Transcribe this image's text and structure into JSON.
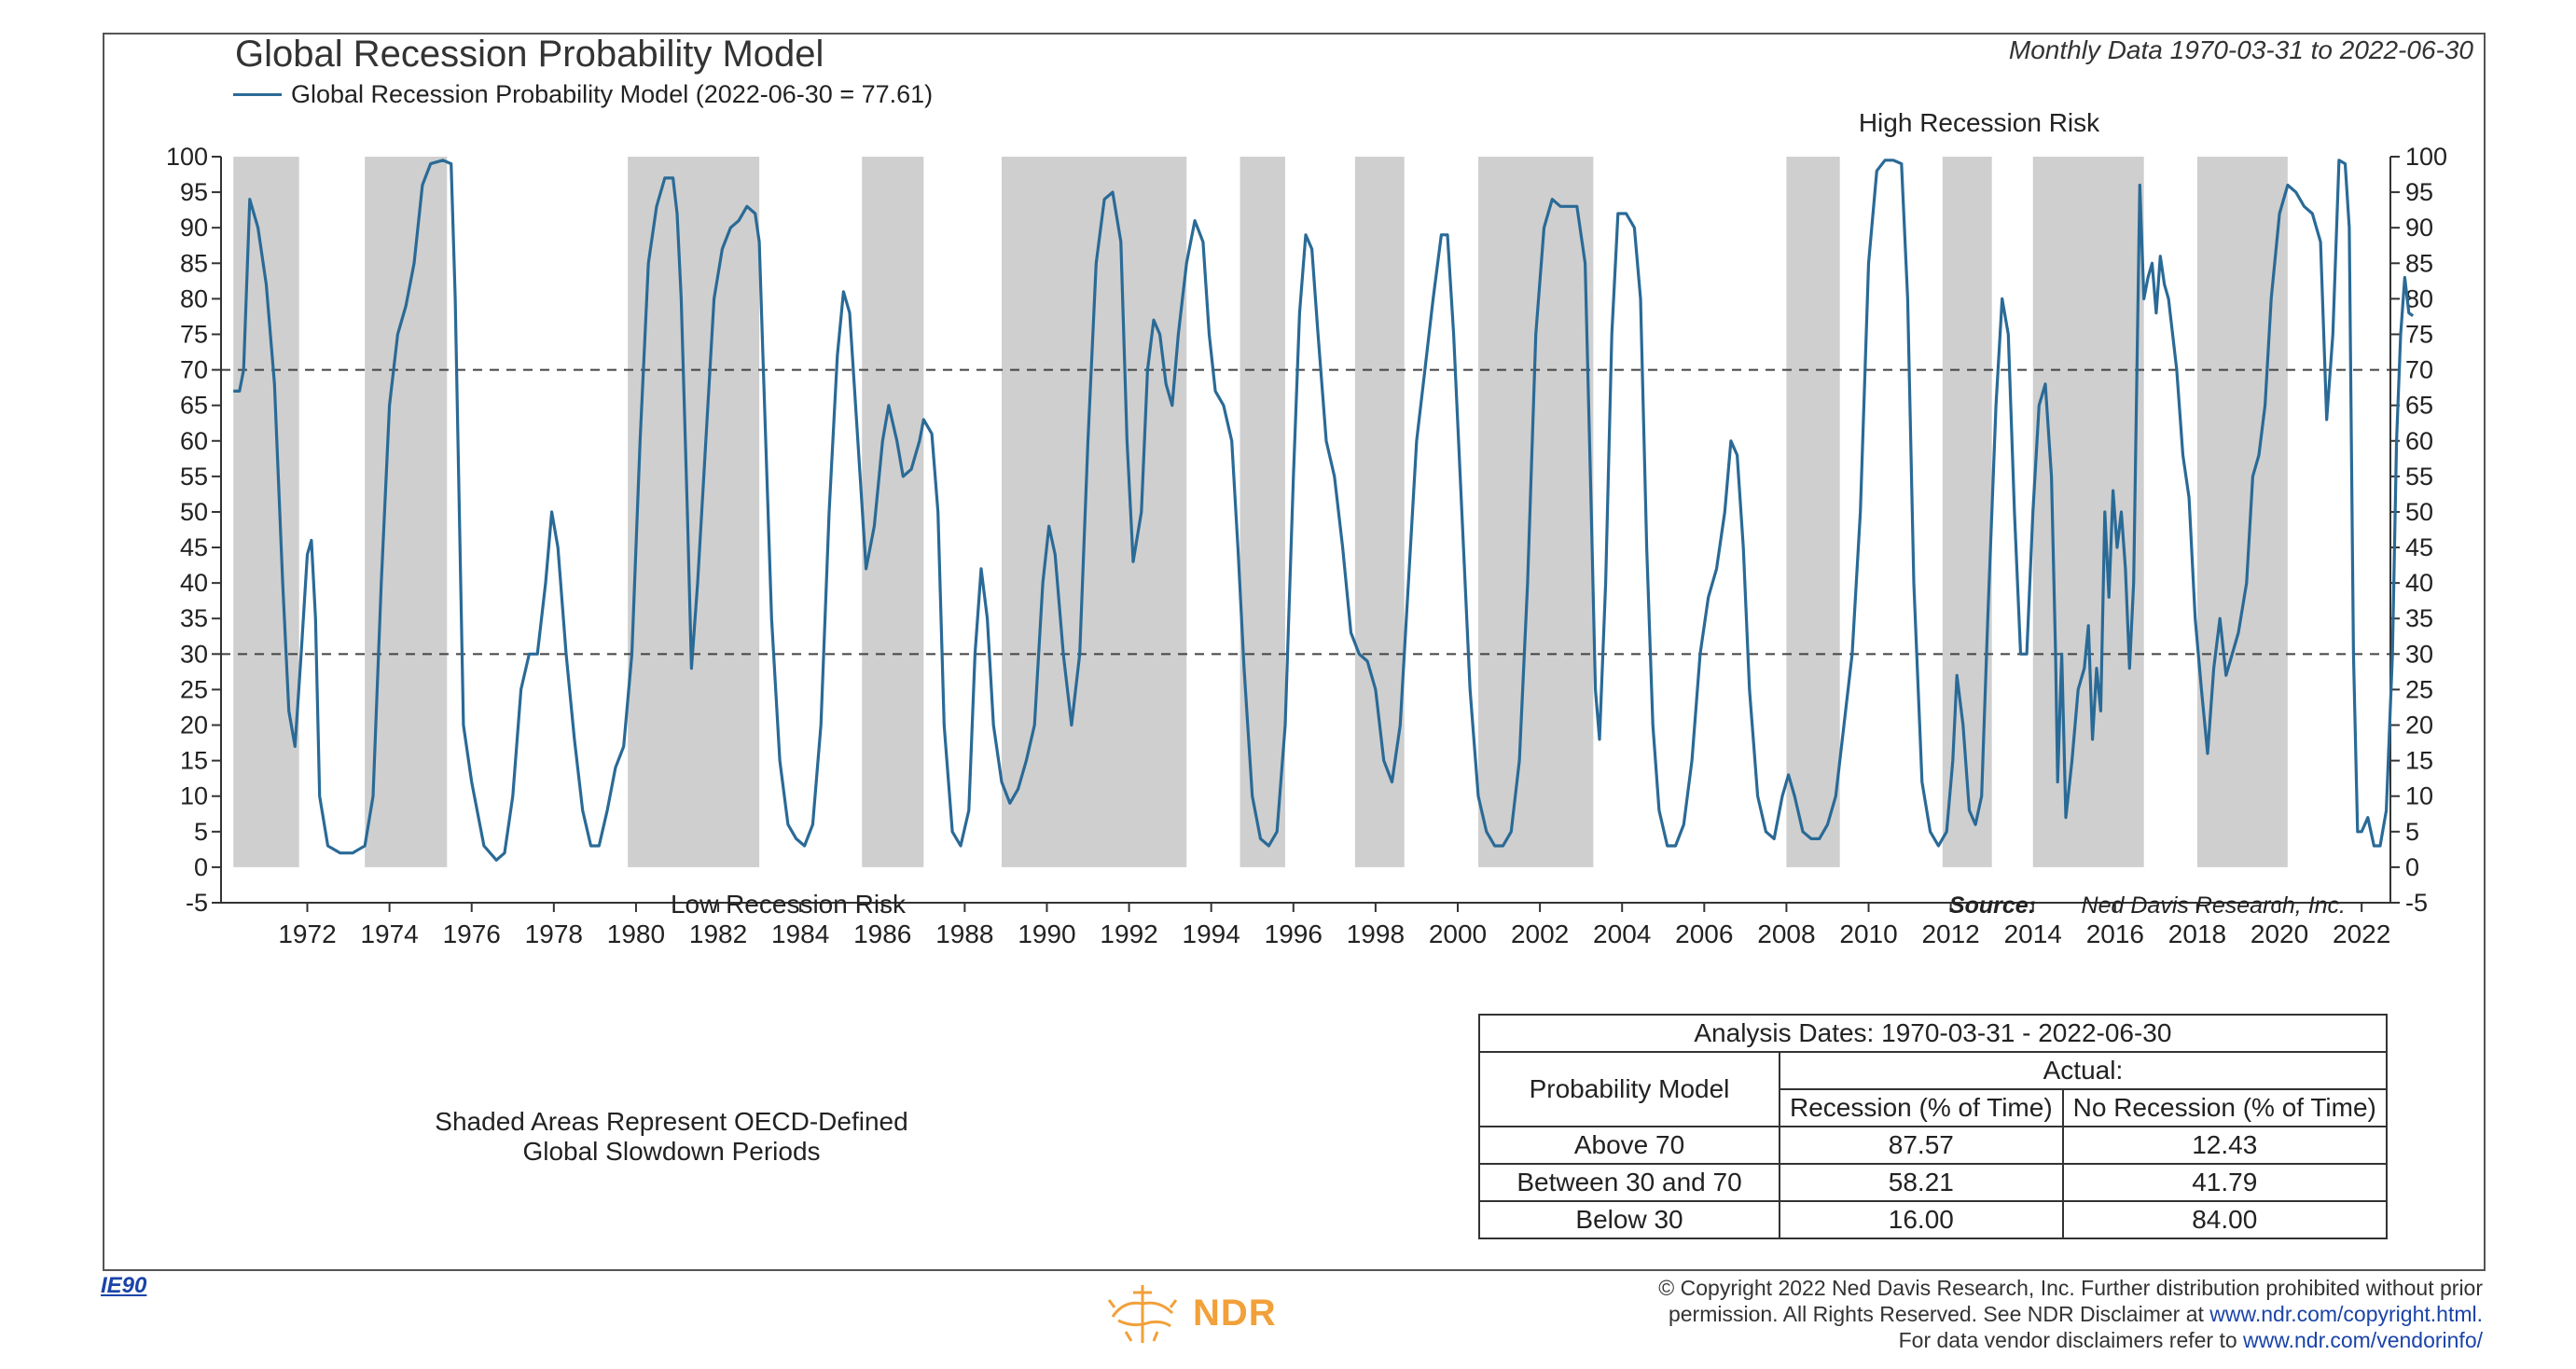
{
  "header": {
    "title": "Global Recession Probability Model",
    "subtitle": "Monthly Data 1970-03-31 to 2022-06-30",
    "legend_label": "Global Recession Probability Model (2022-06-30 = 77.61)"
  },
  "colors": {
    "series": "#2a6a96",
    "shade": "#cfcfcf",
    "reference_line": "#444444",
    "logo": "#f2a03a",
    "link": "#1a44a8"
  },
  "chart_data": {
    "type": "line",
    "title": "Global Recession Probability Model",
    "series_name": "Global Recession Probability Model",
    "last_value": 77.61,
    "xlim": [
      1969.9,
      2022.7
    ],
    "ylim": [
      -5,
      100
    ],
    "y_ticks": [
      "100",
      "95",
      "90",
      "85",
      "80",
      "75",
      "70",
      "65",
      "60",
      "55",
      "50",
      "45",
      "40",
      "35",
      "30",
      "25",
      "20",
      "15",
      "10",
      "5",
      "0",
      "-5"
    ],
    "x_ticks": [
      "1972",
      "1974",
      "1976",
      "1978",
      "1980",
      "1982",
      "1984",
      "1986",
      "1988",
      "1990",
      "1992",
      "1994",
      "1996",
      "1998",
      "2000",
      "2002",
      "2004",
      "2006",
      "2008",
      "2010",
      "2012",
      "2014",
      "2016",
      "2018",
      "2020",
      "2022"
    ],
    "reference_lines": [
      70,
      30
    ],
    "annotations": {
      "high": "High Recession Risk",
      "low": "Low Recession Risk",
      "source_label": "Source:",
      "source_name": "Ned Davis Research, Inc."
    },
    "shaded_periods": [
      [
        1970.2,
        1971.8
      ],
      [
        1973.4,
        1975.4
      ],
      [
        1979.8,
        1983.0
      ],
      [
        1985.5,
        1987.0
      ],
      [
        1988.9,
        1993.4
      ],
      [
        1994.7,
        1995.8
      ],
      [
        1997.5,
        1998.7
      ],
      [
        2000.5,
        2003.3
      ],
      [
        2008.0,
        2009.3
      ],
      [
        2011.8,
        2013.0
      ],
      [
        2014.0,
        2016.7
      ],
      [
        2018.0,
        2020.2
      ]
    ],
    "points": [
      [
        1970.2,
        67
      ],
      [
        1970.35,
        67
      ],
      [
        1970.45,
        70
      ],
      [
        1970.6,
        94
      ],
      [
        1970.8,
        90
      ],
      [
        1971.0,
        82
      ],
      [
        1971.2,
        68
      ],
      [
        1971.4,
        40
      ],
      [
        1971.55,
        22
      ],
      [
        1971.7,
        17
      ],
      [
        1971.85,
        30
      ],
      [
        1972.0,
        44
      ],
      [
        1972.1,
        46
      ],
      [
        1972.2,
        35
      ],
      [
        1972.3,
        10
      ],
      [
        1972.5,
        3
      ],
      [
        1972.8,
        2
      ],
      [
        1973.1,
        2
      ],
      [
        1973.4,
        3
      ],
      [
        1973.6,
        10
      ],
      [
        1973.8,
        40
      ],
      [
        1974.0,
        65
      ],
      [
        1974.2,
        75
      ],
      [
        1974.4,
        79
      ],
      [
        1974.6,
        85
      ],
      [
        1974.8,
        96
      ],
      [
        1975.0,
        99
      ],
      [
        1975.3,
        99.5
      ],
      [
        1975.5,
        99
      ],
      [
        1975.6,
        80
      ],
      [
        1975.7,
        50
      ],
      [
        1975.8,
        20
      ],
      [
        1976.0,
        12
      ],
      [
        1976.3,
        3
      ],
      [
        1976.6,
        1
      ],
      [
        1976.8,
        2
      ],
      [
        1977.0,
        10
      ],
      [
        1977.2,
        25
      ],
      [
        1977.4,
        30
      ],
      [
        1977.6,
        30
      ],
      [
        1977.8,
        40
      ],
      [
        1977.95,
        50
      ],
      [
        1978.1,
        45
      ],
      [
        1978.3,
        30
      ],
      [
        1978.5,
        18
      ],
      [
        1978.7,
        8
      ],
      [
        1978.9,
        3
      ],
      [
        1979.1,
        3
      ],
      [
        1979.3,
        8
      ],
      [
        1979.5,
        14
      ],
      [
        1979.7,
        17
      ],
      [
        1979.9,
        30
      ],
      [
        1980.1,
        60
      ],
      [
        1980.3,
        85
      ],
      [
        1980.5,
        93
      ],
      [
        1980.7,
        97
      ],
      [
        1980.9,
        97
      ],
      [
        1981.0,
        92
      ],
      [
        1981.1,
        80
      ],
      [
        1981.25,
        50
      ],
      [
        1981.35,
        28
      ],
      [
        1981.5,
        40
      ],
      [
        1981.7,
        60
      ],
      [
        1981.9,
        80
      ],
      [
        1982.1,
        87
      ],
      [
        1982.3,
        90
      ],
      [
        1982.5,
        91
      ],
      [
        1982.7,
        93
      ],
      [
        1982.9,
        92
      ],
      [
        1983.0,
        88
      ],
      [
        1983.1,
        70
      ],
      [
        1983.3,
        35
      ],
      [
        1983.5,
        15
      ],
      [
        1983.7,
        6
      ],
      [
        1983.9,
        4
      ],
      [
        1984.1,
        3
      ],
      [
        1984.3,
        6
      ],
      [
        1984.5,
        20
      ],
      [
        1984.7,
        50
      ],
      [
        1984.9,
        72
      ],
      [
        1985.05,
        81
      ],
      [
        1985.2,
        78
      ],
      [
        1985.4,
        60
      ],
      [
        1985.6,
        42
      ],
      [
        1985.8,
        48
      ],
      [
        1986.0,
        60
      ],
      [
        1986.15,
        65
      ],
      [
        1986.35,
        60
      ],
      [
        1986.5,
        55
      ],
      [
        1986.7,
        56
      ],
      [
        1986.9,
        60
      ],
      [
        1987.0,
        63
      ],
      [
        1987.2,
        61
      ],
      [
        1987.35,
        50
      ],
      [
        1987.5,
        20
      ],
      [
        1987.7,
        5
      ],
      [
        1987.9,
        3
      ],
      [
        1988.1,
        8
      ],
      [
        1988.25,
        30
      ],
      [
        1988.4,
        42
      ],
      [
        1988.55,
        35
      ],
      [
        1988.7,
        20
      ],
      [
        1988.9,
        12
      ],
      [
        1989.1,
        9
      ],
      [
        1989.3,
        11
      ],
      [
        1989.5,
        15
      ],
      [
        1989.7,
        20
      ],
      [
        1989.9,
        40
      ],
      [
        1990.05,
        48
      ],
      [
        1990.2,
        44
      ],
      [
        1990.4,
        30
      ],
      [
        1990.6,
        20
      ],
      [
        1990.8,
        30
      ],
      [
        1991.0,
        60
      ],
      [
        1991.2,
        85
      ],
      [
        1991.4,
        94
      ],
      [
        1991.6,
        95
      ],
      [
        1991.8,
        88
      ],
      [
        1991.95,
        60
      ],
      [
        1992.1,
        43
      ],
      [
        1992.3,
        50
      ],
      [
        1992.45,
        70
      ],
      [
        1992.6,
        77
      ],
      [
        1992.75,
        75
      ],
      [
        1992.9,
        68
      ],
      [
        1993.05,
        65
      ],
      [
        1993.2,
        75
      ],
      [
        1993.4,
        85
      ],
      [
        1993.6,
        91
      ],
      [
        1993.8,
        88
      ],
      [
        1993.95,
        75
      ],
      [
        1994.1,
        67
      ],
      [
        1994.3,
        65
      ],
      [
        1994.5,
        60
      ],
      [
        1994.65,
        45
      ],
      [
        1994.8,
        28
      ],
      [
        1995.0,
        10
      ],
      [
        1995.2,
        4
      ],
      [
        1995.4,
        3
      ],
      [
        1995.6,
        5
      ],
      [
        1995.8,
        20
      ],
      [
        1996.0,
        55
      ],
      [
        1996.15,
        78
      ],
      [
        1996.3,
        89
      ],
      [
        1996.45,
        87
      ],
      [
        1996.6,
        75
      ],
      [
        1996.8,
        60
      ],
      [
        1997.0,
        55
      ],
      [
        1997.2,
        45
      ],
      [
        1997.4,
        33
      ],
      [
        1997.6,
        30
      ],
      [
        1997.8,
        29
      ],
      [
        1998.0,
        25
      ],
      [
        1998.2,
        15
      ],
      [
        1998.4,
        12
      ],
      [
        1998.6,
        20
      ],
      [
        1998.8,
        40
      ],
      [
        1999.0,
        60
      ],
      [
        1999.2,
        70
      ],
      [
        1999.4,
        80
      ],
      [
        1999.6,
        89
      ],
      [
        1999.75,
        89
      ],
      [
        1999.9,
        75
      ],
      [
        2000.1,
        50
      ],
      [
        2000.3,
        25
      ],
      [
        2000.5,
        10
      ],
      [
        2000.7,
        5
      ],
      [
        2000.9,
        3
      ],
      [
        2001.1,
        3
      ],
      [
        2001.3,
        5
      ],
      [
        2001.5,
        15
      ],
      [
        2001.7,
        40
      ],
      [
        2001.9,
        75
      ],
      [
        2002.1,
        90
      ],
      [
        2002.3,
        94
      ],
      [
        2002.5,
        93
      ],
      [
        2002.7,
        93
      ],
      [
        2002.9,
        93
      ],
      [
        2003.1,
        85
      ],
      [
        2003.25,
        50
      ],
      [
        2003.35,
        25
      ],
      [
        2003.45,
        18
      ],
      [
        2003.6,
        40
      ],
      [
        2003.75,
        75
      ],
      [
        2003.9,
        92
      ],
      [
        2004.1,
        92
      ],
      [
        2004.3,
        90
      ],
      [
        2004.45,
        80
      ],
      [
        2004.6,
        45
      ],
      [
        2004.75,
        20
      ],
      [
        2004.9,
        8
      ],
      [
        2005.1,
        3
      ],
      [
        2005.3,
        3
      ],
      [
        2005.5,
        6
      ],
      [
        2005.7,
        15
      ],
      [
        2005.9,
        30
      ],
      [
        2006.1,
        38
      ],
      [
        2006.3,
        42
      ],
      [
        2006.5,
        50
      ],
      [
        2006.65,
        60
      ],
      [
        2006.8,
        58
      ],
      [
        2006.95,
        45
      ],
      [
        2007.1,
        25
      ],
      [
        2007.3,
        10
      ],
      [
        2007.5,
        5
      ],
      [
        2007.7,
        4
      ],
      [
        2007.9,
        10
      ],
      [
        2008.05,
        13
      ],
      [
        2008.2,
        10
      ],
      [
        2008.4,
        5
      ],
      [
        2008.6,
        4
      ],
      [
        2008.8,
        4
      ],
      [
        2009.0,
        6
      ],
      [
        2009.2,
        10
      ],
      [
        2009.4,
        20
      ],
      [
        2009.6,
        30
      ],
      [
        2009.8,
        50
      ],
      [
        2010.0,
        85
      ],
      [
        2010.2,
        98
      ],
      [
        2010.4,
        99.5
      ],
      [
        2010.6,
        99.5
      ],
      [
        2010.8,
        99
      ],
      [
        2010.95,
        80
      ],
      [
        2011.1,
        40
      ],
      [
        2011.3,
        12
      ],
      [
        2011.5,
        5
      ],
      [
        2011.7,
        3
      ],
      [
        2011.9,
        5
      ],
      [
        2012.05,
        15
      ],
      [
        2012.15,
        27
      ],
      [
        2012.3,
        20
      ],
      [
        2012.45,
        8
      ],
      [
        2012.6,
        6
      ],
      [
        2012.75,
        10
      ],
      [
        2012.9,
        35
      ],
      [
        2013.1,
        65
      ],
      [
        2013.25,
        80
      ],
      [
        2013.4,
        75
      ],
      [
        2013.55,
        50
      ],
      [
        2013.7,
        30
      ],
      [
        2013.85,
        30
      ],
      [
        2014.0,
        50
      ],
      [
        2014.15,
        65
      ],
      [
        2014.3,
        68
      ],
      [
        2014.45,
        55
      ],
      [
        2014.55,
        30
      ],
      [
        2014.6,
        12
      ],
      [
        2014.7,
        30
      ],
      [
        2014.8,
        7
      ],
      [
        2014.95,
        15
      ],
      [
        2015.1,
        25
      ],
      [
        2015.25,
        28
      ],
      [
        2015.35,
        34
      ],
      [
        2015.45,
        18
      ],
      [
        2015.55,
        28
      ],
      [
        2015.65,
        22
      ],
      [
        2015.75,
        50
      ],
      [
        2015.85,
        38
      ],
      [
        2015.95,
        53
      ],
      [
        2016.05,
        45
      ],
      [
        2016.15,
        50
      ],
      [
        2016.25,
        42
      ],
      [
        2016.35,
        28
      ],
      [
        2016.45,
        40
      ],
      [
        2016.6,
        96
      ],
      [
        2016.7,
        80
      ],
      [
        2016.8,
        83
      ],
      [
        2016.9,
        85
      ],
      [
        2017.0,
        78
      ],
      [
        2017.1,
        86
      ],
      [
        2017.2,
        82
      ],
      [
        2017.3,
        80
      ],
      [
        2017.5,
        70
      ],
      [
        2017.65,
        58
      ],
      [
        2017.8,
        52
      ],
      [
        2017.95,
        35
      ],
      [
        2018.1,
        25
      ],
      [
        2018.25,
        16
      ],
      [
        2018.4,
        28
      ],
      [
        2018.55,
        35
      ],
      [
        2018.7,
        27
      ],
      [
        2018.85,
        30
      ],
      [
        2019.0,
        33
      ],
      [
        2019.2,
        40
      ],
      [
        2019.35,
        55
      ],
      [
        2019.5,
        58
      ],
      [
        2019.65,
        65
      ],
      [
        2019.8,
        80
      ],
      [
        2020.0,
        92
      ],
      [
        2020.2,
        96
      ],
      [
        2020.4,
        95
      ],
      [
        2020.6,
        93
      ],
      [
        2020.8,
        92
      ],
      [
        2021.0,
        88
      ],
      [
        2021.15,
        63
      ],
      [
        2021.3,
        75
      ],
      [
        2021.45,
        99.5
      ],
      [
        2021.6,
        99
      ],
      [
        2021.7,
        90
      ],
      [
        2021.8,
        30
      ],
      [
        2021.9,
        5
      ],
      [
        2022.0,
        5
      ],
      [
        2022.15,
        7
      ],
      [
        2022.3,
        3
      ],
      [
        2022.45,
        3
      ],
      [
        2022.6,
        8
      ],
      [
        2022.75,
        30
      ],
      [
        2022.85,
        60
      ],
      [
        2022.95,
        75
      ],
      [
        2023.05,
        83
      ],
      [
        2023.15,
        78
      ],
      [
        2023.25,
        77.6
      ]
    ]
  },
  "footnote": {
    "line1": "Shaded Areas Represent OECD-Defined",
    "line2": "Global Slowdown Periods"
  },
  "stats_table": {
    "analysis_dates": "Analysis Dates: 1970-03-31 - 2022-06-30",
    "actual_label": "Actual:",
    "row_header": "Probability Model",
    "col1": "Recession (% of Time)",
    "col2": "No Recession (% of Time)",
    "rows": [
      {
        "label": "Above 70",
        "recession": "87.57",
        "no_recession": "12.43"
      },
      {
        "label": "Between 30 and 70",
        "recession": "58.21",
        "no_recession": "41.79"
      },
      {
        "label": "Below 30",
        "recession": "16.00",
        "no_recession": "84.00"
      }
    ]
  },
  "footer": {
    "code": "IE90",
    "logo_text": "NDR",
    "copyright_line1": "© Copyright 2022 Ned Davis Research, Inc. Further distribution prohibited without prior",
    "copyright_line2": "permission. All Rights Reserved. See NDR Disclaimer at",
    "copyright_link1": "www.ndr.com/copyright.html.",
    "copyright_line3": "For data vendor disclaimers refer to",
    "copyright_link2": "www.ndr.com/vendorinfo/"
  }
}
